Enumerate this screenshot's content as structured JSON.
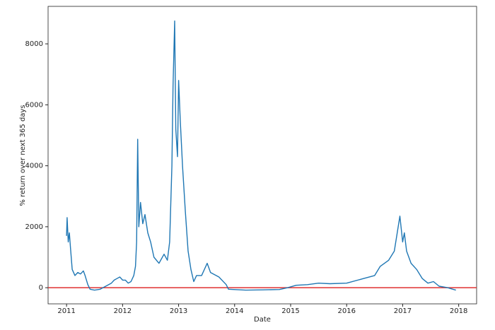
{
  "chart_data": {
    "type": "line",
    "xlabel": "Date",
    "ylabel": "% return over next 365 days",
    "xlim": [
      2010.67,
      2018.32
    ],
    "xticks": [
      2011,
      2012,
      2013,
      2014,
      2015,
      2016,
      2017,
      2018
    ],
    "ylim": [
      -530,
      9230
    ],
    "yticks": [
      0,
      2000,
      4000,
      6000,
      8000
    ],
    "reference_line": {
      "value": 0,
      "color": "#e03030"
    },
    "series": [
      {
        "color": "#1f77b4",
        "x": [
          2011.0,
          2011.01,
          2011.03,
          2011.05,
          2011.07,
          2011.1,
          2011.15,
          2011.2,
          2011.25,
          2011.3,
          2011.33,
          2011.38,
          2011.42,
          2011.5,
          2011.6,
          2011.7,
          2011.8,
          2011.85,
          2011.9,
          2011.95,
          2012.0,
          2012.05,
          2012.1,
          2012.15,
          2012.2,
          2012.23,
          2012.25,
          2012.27,
          2012.29,
          2012.32,
          2012.36,
          2012.4,
          2012.45,
          2012.5,
          2012.56,
          2012.65,
          2012.74,
          2012.8,
          2012.84,
          2012.88,
          2012.9,
          2012.93,
          2012.95,
          2012.98,
          2013.0,
          2013.03,
          2013.07,
          2013.12,
          2013.17,
          2013.22,
          2013.27,
          2013.32,
          2013.41,
          2013.51,
          2013.57,
          2013.72,
          2013.85,
          2013.89,
          2014.2,
          2014.5,
          2014.8,
          2014.95,
          2015.1,
          2015.3,
          2015.5,
          2015.7,
          2016.0,
          2016.3,
          2016.5,
          2016.6,
          2016.75,
          2016.85,
          2016.92,
          2016.95,
          2017.0,
          2017.03,
          2017.07,
          2017.15,
          2017.25,
          2017.35,
          2017.45,
          2017.55,
          2017.65,
          2017.8,
          2017.95
        ],
        "values": [
          1700,
          2300,
          1500,
          1800,
          1300,
          600,
          400,
          500,
          450,
          550,
          400,
          100,
          -50,
          -80,
          -50,
          50,
          150,
          250,
          300,
          350,
          250,
          250,
          150,
          200,
          400,
          700,
          1500,
          4870,
          2000,
          2800,
          2100,
          2400,
          1800,
          1500,
          1000,
          800,
          1100,
          900,
          1500,
          4000,
          6600,
          8750,
          5200,
          4300,
          6800,
          5500,
          4000,
          2500,
          1200,
          600,
          200,
          400,
          400,
          800,
          500,
          350,
          100,
          -50,
          -80,
          -70,
          -60,
          0,
          80,
          100,
          150,
          130,
          150,
          300,
          400,
          700,
          900,
          1200,
          2000,
          2350,
          1500,
          1800,
          1200,
          800,
          600,
          300,
          150,
          200,
          50,
          0,
          -80
        ]
      }
    ]
  }
}
